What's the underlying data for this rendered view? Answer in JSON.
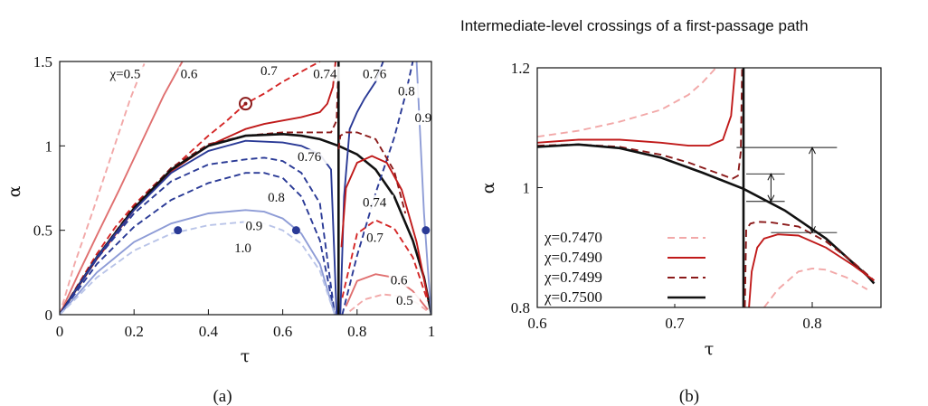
{
  "title": "Intermediate-level crossings of a first-passage path",
  "chart_data": [
    {
      "type": "line",
      "panel": "a",
      "caption": "(a)",
      "xlabel": "τ",
      "ylabel": "α",
      "xlim": [
        0,
        1
      ],
      "ylim": [
        0,
        1.5
      ],
      "xticks": [
        "0",
        "0.2",
        "0.4",
        "0.6",
        "0.8",
        "1"
      ],
      "yticks": [
        "0",
        "0.5",
        "1",
        "1.5"
      ],
      "grid": false,
      "labels": [
        {
          "text": "χ=0.5",
          "x": 0.135,
          "y": 1.4
        },
        {
          "text": "0.6",
          "x": 0.325,
          "y": 1.4
        },
        {
          "text": "0.7",
          "x": 0.54,
          "y": 1.42
        },
        {
          "text": "0.74",
          "x": 0.682,
          "y": 1.4
        },
        {
          "text": "0.76",
          "x": 0.815,
          "y": 1.4
        },
        {
          "text": "0.8",
          "x": 0.91,
          "y": 1.3
        },
        {
          "text": "0.9",
          "x": 0.955,
          "y": 1.14
        },
        {
          "text": "0.76",
          "x": 0.64,
          "y": 0.91
        },
        {
          "text": "0.8",
          "x": 0.56,
          "y": 0.67
        },
        {
          "text": "0.9",
          "x": 0.5,
          "y": 0.5
        },
        {
          "text": "1.0",
          "x": 0.47,
          "y": 0.37
        },
        {
          "text": "0.74",
          "x": 0.815,
          "y": 0.64
        },
        {
          "text": "0.7",
          "x": 0.825,
          "y": 0.43
        },
        {
          "text": "0.6",
          "x": 0.89,
          "y": 0.18
        },
        {
          "text": "0.5",
          "x": 0.905,
          "y": 0.06
        }
      ],
      "markers": [
        {
          "shape": "dot",
          "x": 0.318,
          "y": 0.5
        },
        {
          "shape": "dot",
          "x": 0.636,
          "y": 0.5
        },
        {
          "shape": "dot",
          "x": 0.985,
          "y": 0.5
        },
        {
          "shape": "ring",
          "x": 0.5,
          "y": 1.25
        }
      ],
      "series": [
        {
          "color": "#f2a8a8",
          "dash": true,
          "x": [
            0,
            0.04,
            0.09,
            0.14,
            0.19,
            0.23
          ],
          "y": [
            0,
            0.3,
            0.62,
            0.95,
            1.28,
            1.5
          ]
        },
        {
          "color": "#e07070",
          "dash": false,
          "x": [
            0,
            0.05,
            0.1,
            0.16,
            0.22,
            0.28,
            0.33
          ],
          "y": [
            0,
            0.24,
            0.47,
            0.74,
            1.02,
            1.3,
            1.5
          ]
        },
        {
          "color": "#d42626",
          "dash": true,
          "x": [
            0,
            0.05,
            0.1,
            0.15,
            0.2,
            0.25,
            0.3,
            0.35,
            0.4,
            0.45,
            0.5,
            0.55,
            0.6,
            0.65,
            0.7
          ],
          "y": [
            0,
            0.18,
            0.36,
            0.52,
            0.65,
            0.76,
            0.86,
            0.96,
            1.06,
            1.15,
            1.25,
            1.31,
            1.38,
            1.44,
            1.5
          ]
        },
        {
          "color": "#c01a1a",
          "dash": false,
          "x": [
            0,
            0.1,
            0.2,
            0.3,
            0.4,
            0.5,
            0.55,
            0.6,
            0.65,
            0.7,
            0.72,
            0.735,
            0.742
          ],
          "y": [
            0,
            0.33,
            0.62,
            0.85,
            1.0,
            1.1,
            1.13,
            1.15,
            1.17,
            1.2,
            1.25,
            1.35,
            1.5
          ]
        },
        {
          "color": "#8b1a1a",
          "dash": true,
          "x": [
            0,
            0.1,
            0.2,
            0.3,
            0.4,
            0.5,
            0.6,
            0.65,
            0.7,
            0.73,
            0.745,
            0.75
          ],
          "y": [
            0,
            0.34,
            0.64,
            0.87,
            1.01,
            1.06,
            1.08,
            1.08,
            1.08,
            1.08,
            1.15,
            1.5
          ]
        },
        {
          "color": "#111111",
          "dash": false,
          "x": [
            0,
            0.1,
            0.2,
            0.3,
            0.4,
            0.5,
            0.6,
            0.65,
            0.7,
            0.75,
            0.8,
            0.85,
            0.9,
            0.95,
            0.98,
            1.0
          ],
          "y": [
            0,
            0.34,
            0.63,
            0.86,
            1.0,
            1.06,
            1.07,
            1.06,
            1.04,
            1.0,
            0.95,
            0.86,
            0.7,
            0.44,
            0.22,
            0
          ]
        },
        {
          "color": "#111111",
          "dash": false,
          "x": [
            0.75,
            0.75
          ],
          "y": [
            0,
            1.5
          ]
        },
        {
          "color": "#2a3a96",
          "dash": false,
          "x": [
            0,
            0.1,
            0.2,
            0.3,
            0.4,
            0.5,
            0.6,
            0.65,
            0.7,
            0.73,
            0.745
          ],
          "y": [
            0,
            0.34,
            0.62,
            0.84,
            0.97,
            1.03,
            1.02,
            1.0,
            0.95,
            0.86,
            0
          ]
        },
        {
          "color": "#2a3a96",
          "dash": false,
          "x": [
            0.755,
            0.765,
            0.78,
            0.8,
            0.82,
            0.85,
            0.87
          ],
          "y": [
            0,
            0.7,
            1.1,
            1.2,
            1.28,
            1.38,
            1.5
          ]
        },
        {
          "color": "#2a3a96",
          "dash": true,
          "x": [
            0,
            0.1,
            0.2,
            0.3,
            0.4,
            0.5,
            0.55,
            0.6,
            0.65,
            0.7,
            0.74
          ],
          "y": [
            0,
            0.33,
            0.6,
            0.79,
            0.89,
            0.92,
            0.93,
            0.91,
            0.84,
            0.66,
            0
          ]
        },
        {
          "color": "#2a3a96",
          "dash": true,
          "x": [
            0.76,
            0.8,
            0.85,
            0.9,
            0.93,
            0.95
          ],
          "y": [
            0,
            0.35,
            0.72,
            1.05,
            1.3,
            1.5
          ]
        },
        {
          "color": "#2a3a96",
          "dash": true,
          "x": [
            0,
            0.1,
            0.2,
            0.3,
            0.4,
            0.5,
            0.55,
            0.6,
            0.65,
            0.7,
            0.74
          ],
          "y": [
            0,
            0.3,
            0.52,
            0.68,
            0.78,
            0.84,
            0.84,
            0.81,
            0.7,
            0.44,
            0
          ]
        },
        {
          "color": "#8e9cd6",
          "dash": false,
          "x": [
            0,
            0.1,
            0.2,
            0.3,
            0.4,
            0.5,
            0.55,
            0.6,
            0.65,
            0.7,
            0.74
          ],
          "y": [
            0,
            0.25,
            0.43,
            0.54,
            0.6,
            0.62,
            0.61,
            0.57,
            0.48,
            0.3,
            0
          ]
        },
        {
          "color": "#8e9cd6",
          "dash": false,
          "x": [
            0.96,
            0.97,
            0.98,
            0.99,
            1.0
          ],
          "y": [
            1.5,
            1.05,
            0.6,
            0.28,
            0
          ]
        },
        {
          "color": "#b9c4e8",
          "dash": true,
          "x": [
            0,
            0.1,
            0.2,
            0.3,
            0.4,
            0.5,
            0.55,
            0.6,
            0.65,
            0.7,
            0.74
          ],
          "y": [
            0,
            0.22,
            0.38,
            0.48,
            0.53,
            0.55,
            0.54,
            0.5,
            0.42,
            0.26,
            0
          ]
        },
        {
          "color": "#8b1a1a",
          "dash": true,
          "x": [
            0.75,
            0.755,
            0.77,
            0.8,
            0.85,
            0.9,
            0.93
          ],
          "y": [
            0.98,
            1.06,
            1.08,
            1.08,
            1.04,
            0.85,
            0.6
          ]
        },
        {
          "color": "#c01a1a",
          "dash": false,
          "x": [
            0.758,
            0.77,
            0.8,
            0.84,
            0.88,
            0.92,
            0.96,
            0.99
          ],
          "y": [
            0.4,
            0.75,
            0.9,
            0.94,
            0.9,
            0.74,
            0.43,
            0.1
          ]
        },
        {
          "color": "#d42626",
          "dash": true,
          "x": [
            0.76,
            0.8,
            0.85,
            0.9,
            0.95,
            0.99
          ],
          "y": [
            0.1,
            0.48,
            0.56,
            0.51,
            0.34,
            0.08
          ]
        },
        {
          "color": "#e07070",
          "dash": false,
          "x": [
            0.77,
            0.8,
            0.85,
            0.9,
            0.95,
            0.99
          ],
          "y": [
            0.05,
            0.2,
            0.24,
            0.22,
            0.14,
            0.03
          ]
        },
        {
          "color": "#f2a8a8",
          "dash": true,
          "x": [
            0.78,
            0.82,
            0.87,
            0.92,
            0.96,
            0.99
          ],
          "y": [
            0.02,
            0.09,
            0.12,
            0.11,
            0.07,
            0.02
          ]
        }
      ]
    },
    {
      "type": "line",
      "panel": "b",
      "caption": "(b)",
      "xlabel": "τ",
      "ylabel": "α",
      "xlim": [
        0.6,
        0.85
      ],
      "ylim": [
        0.8,
        1.2
      ],
      "xticks": [
        "0.6",
        "0.7",
        "0.8"
      ],
      "yticks": [
        "0.8",
        "1",
        "1.2"
      ],
      "grid": false,
      "legend_position": "bottom-left",
      "series": [
        {
          "name": "χ=0.7470",
          "color": "#f2a8a8",
          "dash": true,
          "legend": true,
          "x": [
            0.6,
            0.63,
            0.66,
            0.69,
            0.71,
            0.72,
            0.73
          ],
          "y": [
            1.085,
            1.095,
            1.11,
            1.13,
            1.155,
            1.175,
            1.2
          ]
        },
        {
          "name": "χ=0.7490",
          "color": "#c01a1a",
          "dash": false,
          "legend": true,
          "x": [
            0.6,
            0.63,
            0.66,
            0.69,
            0.71,
            0.725,
            0.735,
            0.741,
            0.744
          ],
          "y": [
            1.075,
            1.08,
            1.08,
            1.075,
            1.07,
            1.07,
            1.08,
            1.12,
            1.2
          ]
        },
        {
          "name": "χ=0.7499",
          "color": "#8b1a1a",
          "dash": true,
          "legend": true,
          "x": [
            0.6,
            0.63,
            0.66,
            0.69,
            0.71,
            0.73,
            0.742,
            0.746,
            0.748,
            0.749
          ],
          "y": [
            1.07,
            1.072,
            1.068,
            1.055,
            1.042,
            1.025,
            1.015,
            1.02,
            1.06,
            1.2
          ]
        },
        {
          "name": "χ=0.7500",
          "color": "#111111",
          "dash": false,
          "legend": true,
          "x": [
            0.6,
            0.63,
            0.66,
            0.69,
            0.72,
            0.75,
            0.78,
            0.81,
            0.84,
            0.845
          ],
          "y": [
            1.068,
            1.072,
            1.066,
            1.05,
            1.025,
            0.998,
            0.962,
            0.915,
            0.853,
            0.84
          ]
        },
        {
          "color": "#111111",
          "dash": false,
          "legend": false,
          "x": [
            0.75,
            0.75
          ],
          "y": [
            0.8,
            1.2
          ]
        },
        {
          "color": "#8b1a1a",
          "dash": true,
          "legend": false,
          "x": [
            0.751,
            0.752,
            0.755,
            0.76,
            0.77,
            0.79,
            0.81,
            0.83,
            0.845
          ],
          "y": [
            0.8,
            0.93,
            0.94,
            0.943,
            0.942,
            0.935,
            0.91,
            0.875,
            0.845
          ]
        },
        {
          "color": "#c01a1a",
          "dash": false,
          "legend": false,
          "x": [
            0.754,
            0.756,
            0.76,
            0.765,
            0.775,
            0.79,
            0.81,
            0.83,
            0.845
          ],
          "y": [
            0.8,
            0.86,
            0.9,
            0.915,
            0.922,
            0.92,
            0.9,
            0.87,
            0.845
          ]
        },
        {
          "color": "#f2a8a8",
          "dash": true,
          "legend": false,
          "x": [
            0.765,
            0.775,
            0.79,
            0.8,
            0.81,
            0.825,
            0.84
          ],
          "y": [
            0.8,
            0.83,
            0.86,
            0.865,
            0.863,
            0.85,
            0.83
          ]
        }
      ],
      "arrows": [
        {
          "x": 0.77,
          "y1": 0.977,
          "y2": 1.023
        },
        {
          "x": 0.8,
          "y1": 0.925,
          "y2": 1.067
        }
      ],
      "hlines": [
        {
          "y": 1.067,
          "x1": 0.745,
          "x2": 0.818
        },
        {
          "y": 1.023,
          "x1": 0.752,
          "x2": 0.78
        },
        {
          "y": 0.977,
          "x1": 0.752,
          "x2": 0.78
        },
        {
          "y": 0.925,
          "x1": 0.77,
          "x2": 0.818
        }
      ]
    }
  ]
}
